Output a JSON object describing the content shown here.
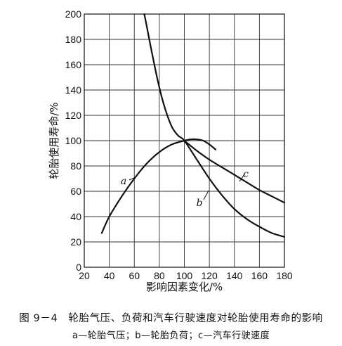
{
  "chart_data": {
    "type": "line",
    "xlabel": "影响因素变化/%",
    "ylabel": "轮胎使用寿命/%",
    "xlim": [
      20,
      180
    ],
    "ylim": [
      0,
      200
    ],
    "xticks": [
      20,
      40,
      60,
      80,
      100,
      120,
      140,
      160,
      180
    ],
    "yticks": [
      0,
      20,
      40,
      60,
      80,
      100,
      120,
      140,
      160,
      180,
      200
    ],
    "grid": true,
    "series": [
      {
        "name": "a",
        "x": [
          34,
          40,
          50,
          60,
          70,
          80,
          90,
          100,
          105,
          110,
          115,
          120,
          125
        ],
        "y": [
          27,
          40,
          56,
          70,
          82,
          91,
          97,
          100,
          101,
          101,
          100,
          97,
          93
        ]
      },
      {
        "name": "b",
        "x": [
          68,
          70,
          75,
          80,
          85,
          90,
          95,
          100,
          110,
          120,
          130,
          140,
          150,
          160,
          170,
          180
        ],
        "y": [
          200,
          190,
          165,
          142,
          124,
          111,
          104,
          100,
          85,
          70,
          57,
          46,
          38,
          32,
          27,
          24
        ]
      },
      {
        "name": "c",
        "x": [
          100,
          110,
          120,
          130,
          140,
          150,
          160,
          170,
          180
        ],
        "y": [
          100,
          92,
          85,
          79,
          73,
          67,
          61,
          56,
          51
        ]
      }
    ]
  },
  "caption": {
    "main": "图 9－4　轮胎气压、负荷和汽车行驶速度对轮胎使用寿命的影响",
    "sub": "a—轮胎气压；b—轮胎负荷；c—汽车行驶速度"
  }
}
